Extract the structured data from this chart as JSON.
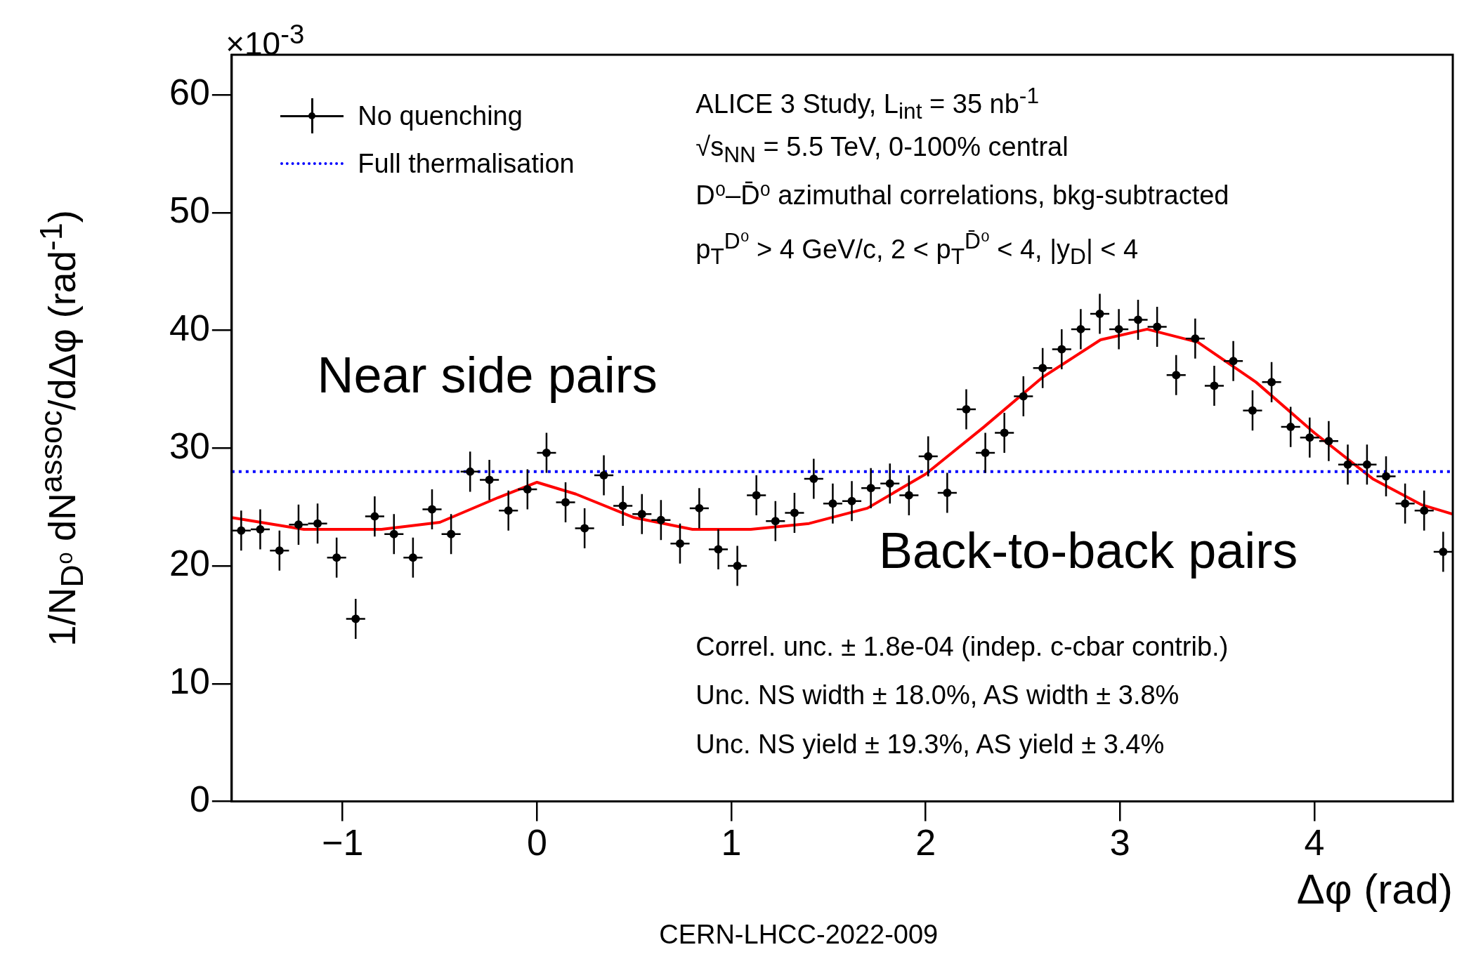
{
  "chart_data": {
    "type": "scatter",
    "xlabel": "Δφ (rad)",
    "ylabel": "1/N$_{D⁰}$ dN$^{assoc}$/dΔφ (rad$^{-1}$)",
    "xlim": [
      -1.5708,
      4.7124
    ],
    "xticks": [
      -1,
      0,
      1,
      2,
      3,
      4
    ],
    "ylim": [
      0,
      63.4
    ],
    "yticks": [
      0,
      10,
      20,
      30,
      40,
      50,
      60
    ],
    "grid": false,
    "legend": "top left",
    "annotations": [
      "×10$^{-3}$",
      "ALICE 3 Study, L$_{int}$ = 35 nb$^{-1}$",
      "√s$_{NN}$ = 5.5 TeV, 0-100% central",
      "D⁰–D̄⁰ azimuthal correlations, bkg-subtracted",
      "p$_{T}$$^{D⁰}$ > 4 GeV/c, 2 < p$_{T}$$^{D̄⁰}$ < 4, |y$_{D}$| < 4",
      "Near side pairs",
      "Back-to-back pairs",
      "Correl. unc. ± 1.8e-04 (indep. c-cbar contrib.)",
      "Unc. NS width ± 18.0%, AS width ± 3.8%",
      "Unc. NS yield ± 19.3%, AS yield ± 3.4%",
      "CERN-LHCC-2022-009"
    ],
    "series": [
      {
        "type": "scatter",
        "name": "No quenching",
        "color": "#000000",
        "marker": "circle",
        "x": [
          -1.522,
          -1.424,
          -1.325,
          -1.227,
          -1.129,
          -1.031,
          -0.933,
          -0.835,
          -0.736,
          -0.638,
          -0.54,
          -0.442,
          -0.344,
          -0.245,
          -0.147,
          -0.049,
          0.049,
          0.147,
          0.245,
          0.344,
          0.442,
          0.54,
          0.638,
          0.736,
          0.835,
          0.933,
          1.031,
          1.129,
          1.227,
          1.325,
          1.424,
          1.522,
          1.62,
          1.718,
          1.816,
          1.914,
          2.013,
          2.111,
          2.209,
          2.307,
          2.405,
          2.503,
          2.602,
          2.7,
          2.798,
          2.896,
          2.994,
          3.093,
          3.191,
          3.289,
          3.387,
          3.485,
          3.583,
          3.682,
          3.78,
          3.878,
          3.976,
          4.074,
          4.172,
          4.271,
          4.369,
          4.467,
          4.565,
          4.663
        ],
        "values": [
          23.0,
          23.1,
          21.3,
          23.5,
          23.6,
          20.7,
          15.5,
          24.2,
          22.7,
          20.7,
          24.8,
          22.7,
          28.0,
          27.3,
          24.7,
          26.5,
          29.6,
          25.4,
          23.2,
          27.7,
          25.1,
          24.4,
          23.9,
          21.9,
          24.9,
          21.4,
          20.0,
          26.0,
          23.8,
          24.5,
          27.4,
          25.3,
          25.5,
          26.6,
          27.0,
          26.0,
          29.3,
          26.2,
          33.3,
          29.6,
          31.3,
          34.4,
          36.8,
          38.4,
          40.1,
          41.4,
          40.1,
          40.9,
          40.3,
          36.2,
          39.3,
          35.3,
          37.4,
          33.2,
          35.6,
          31.8,
          30.9,
          30.6,
          28.6,
          28.6,
          27.6,
          25.3,
          24.7,
          21.2
        ],
        "errors": [
          1.7,
          1.7,
          1.7,
          1.7,
          1.7,
          1.7,
          1.7,
          1.7,
          1.7,
          1.7,
          1.7,
          1.7,
          1.7,
          1.7,
          1.7,
          1.7,
          1.7,
          1.7,
          1.7,
          1.7,
          1.7,
          1.7,
          1.7,
          1.7,
          1.7,
          1.7,
          1.7,
          1.7,
          1.7,
          1.7,
          1.7,
          1.7,
          1.7,
          1.7,
          1.7,
          1.7,
          1.7,
          1.7,
          1.7,
          1.7,
          1.7,
          1.7,
          1.7,
          1.7,
          1.7,
          1.7,
          1.7,
          1.7,
          1.7,
          1.7,
          1.7,
          1.7,
          1.7,
          1.7,
          1.7,
          1.7,
          1.7,
          1.7,
          1.7,
          1.7,
          1.7,
          1.7,
          1.7,
          1.7
        ],
        "xerrors": [
          0.049,
          0.049,
          0.049,
          0.049,
          0.049,
          0.049,
          0.049,
          0.049,
          0.049,
          0.049,
          0.049,
          0.049,
          0.049,
          0.049,
          0.049,
          0.049,
          0.049,
          0.049,
          0.049,
          0.049,
          0.049,
          0.049,
          0.049,
          0.049,
          0.049,
          0.049,
          0.049,
          0.049,
          0.049,
          0.049,
          0.049,
          0.049,
          0.049,
          0.049,
          0.049,
          0.049,
          0.049,
          0.049,
          0.049,
          0.049,
          0.049,
          0.049,
          0.049,
          0.049,
          0.049,
          0.049,
          0.049,
          0.049,
          0.049,
          0.049,
          0.049,
          0.049,
          0.049,
          0.049,
          0.049,
          0.049,
          0.049,
          0.049,
          0.049,
          0.049,
          0.049,
          0.049,
          0.049,
          0.049
        ]
      },
      {
        "type": "line",
        "name": "Full thermalisation",
        "color": "#0000ff",
        "marker": "none",
        "line_style": "dotted",
        "x": [
          -1.5708,
          4.7124
        ],
        "values": [
          28.0,
          28.0
        ]
      },
      {
        "type": "line",
        "color": "#ff0000",
        "marker": "none",
        "line_style": "solid",
        "x": [
          -1.5708,
          -1.2,
          -0.8,
          -0.5,
          -0.2,
          0,
          0.2,
          0.5,
          0.8,
          1.1,
          1.4,
          1.7,
          2.0,
          2.3,
          2.6,
          2.9,
          3.14,
          3.4,
          3.7,
          4.0,
          4.3,
          4.55,
          4.7124
        ],
        "values": [
          24.1,
          23.1,
          23.1,
          23.7,
          25.8,
          27.1,
          26.1,
          24.1,
          23.1,
          23.1,
          23.6,
          24.9,
          27.8,
          31.8,
          36.0,
          39.2,
          40.1,
          39.0,
          35.6,
          31.3,
          27.4,
          25.2,
          24.4
        ]
      }
    ]
  }
}
